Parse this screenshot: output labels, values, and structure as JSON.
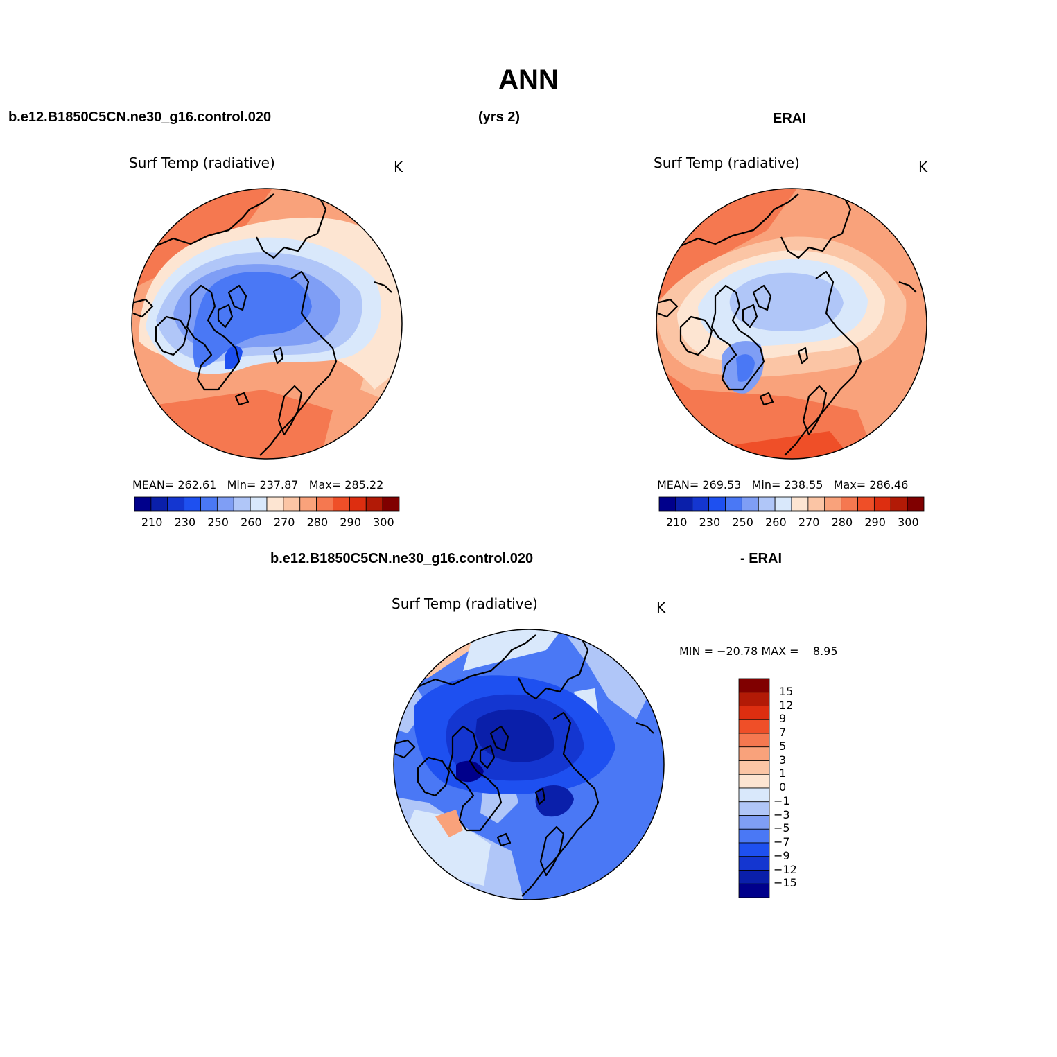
{
  "title": "ANN",
  "header": {
    "case_name": "b.e12.B1850C5CN.ne30_g16.control.020",
    "years": "(yrs 2)",
    "reference": "ERAI"
  },
  "panel_model": {
    "variable": "Surf Temp (radiative)",
    "units": "K",
    "mean_label": "MEAN=",
    "mean": "262.61",
    "min_label": "Min=",
    "min": "237.87",
    "max_label": "Max=",
    "max": "285.22"
  },
  "panel_obs": {
    "variable": "Surf Temp (radiative)",
    "units": "K",
    "mean_label": "MEAN=",
    "mean": "269.53",
    "min_label": "Min=",
    "min": "238.55",
    "max_label": "Max=",
    "max": "286.46"
  },
  "panel_diff": {
    "case_name": "b.e12.B1850C5CN.ne30_g16.control.020",
    "reference": "- ERAI",
    "variable": "Surf Temp (radiative)",
    "units": "K",
    "minmax": "MIN = −20.78 MAX =    8.95"
  },
  "abs_colorbar": {
    "colors": [
      "#00008b",
      "#0a1faa",
      "#1436d0",
      "#1e50f0",
      "#4a78f5",
      "#7f9ef5",
      "#b0c6f8",
      "#d9e8fb",
      "#fde5d2",
      "#fbc5a5",
      "#f9a27b",
      "#f57850",
      "#ef4f28",
      "#dd2e10",
      "#b21a06",
      "#800000"
    ],
    "labels": [
      "210",
      "230",
      "250",
      "260",
      "270",
      "280",
      "290",
      "300"
    ]
  },
  "diff_colorbar": {
    "colors": [
      "#800000",
      "#b21a06",
      "#dd2e10",
      "#ef4f28",
      "#f57850",
      "#f9a27b",
      "#fbc5a5",
      "#fde5d2",
      "#d9e8fb",
      "#b0c6f8",
      "#7f9ef5",
      "#4a78f5",
      "#1e50f0",
      "#1436d0",
      "#0a1faa",
      "#00008b"
    ],
    "labels": [
      "15",
      "12",
      "9",
      "7",
      "5",
      "3",
      "1",
      "0",
      "−1",
      "−3",
      "−5",
      "−7",
      "−9",
      "−12",
      "−15"
    ]
  }
}
